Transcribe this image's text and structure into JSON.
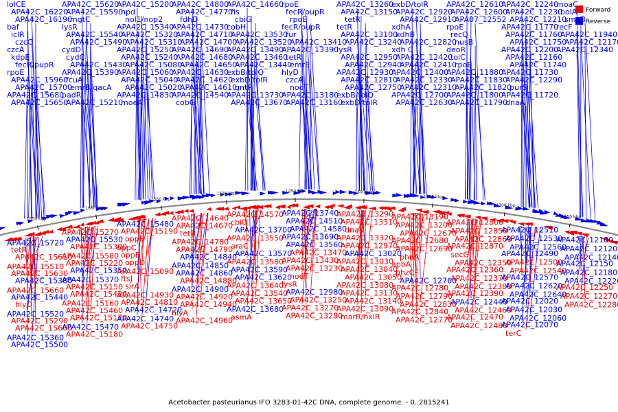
{
  "caption": "Acetobacter pasteurianus IFO 3283-01-42C DNA, complete genome. - 0..2815241",
  "legend": [
    {
      "label": "Forward",
      "color": "#ee0000"
    },
    {
      "label": "Reverse",
      "color": "#0000ee"
    }
  ],
  "colors": {
    "forward": "#ee0000",
    "reverse": "#0000ee",
    "backbone": "#888888"
  },
  "ticks": [
    "1650 kbp",
    "1600 kbp",
    "1550 kbp",
    "1500 kbp",
    "1450 kbp",
    "1400 kbp",
    "1350 kbp",
    "1300 kbp",
    "1250 kbp"
  ],
  "labels_top": [
    [
      "lolCE",
      "r"
    ],
    [
      "APA42C_16220",
      "r"
    ],
    [
      "APA42C_16190",
      "r"
    ],
    [
      "baf",
      "r"
    ],
    [
      "iclR",
      "r"
    ],
    [
      "czcC",
      "r"
    ],
    [
      "czcA",
      "r"
    ],
    [
      "kdpE",
      "r"
    ],
    [
      "fecR/pupR",
      "r"
    ],
    [
      "rpoE",
      "r"
    ],
    [
      "APA42C_15960",
      "r"
    ],
    [
      "APA42C_15700",
      "r"
    ],
    [
      "APA42C_15680",
      "r"
    ],
    [
      "APA42C_15650",
      "r"
    ],
    [
      "APA42C_15620",
      "r"
    ],
    [
      "APA42C_15590",
      "r"
    ],
    [
      "mgtC",
      "r"
    ],
    [
      "lysR",
      "r"
    ],
    [
      "APA42C_15540",
      "r"
    ],
    [
      "APA42C_15490",
      "r"
    ],
    [
      "cydD",
      "r"
    ],
    [
      "cydC",
      "r"
    ],
    [
      "APA42C_15430",
      "r"
    ],
    [
      "APA42C_15390",
      "r"
    ],
    [
      "fcuA",
      "r"
    ],
    [
      "emrB/qacA",
      "r"
    ],
    [
      "padR",
      "r"
    ],
    [
      "APA42C_15210",
      "r"
    ],
    [
      "APA42C_15200",
      "r"
    ],
    [
      "npd",
      "r"
    ],
    [
      "nol1/nop2",
      "r"
    ],
    [
      "APA42C_15340",
      "r"
    ],
    [
      "APA42C_15320",
      "r"
    ],
    [
      "APA42C_15310",
      "r"
    ],
    [
      "APA42C_15250",
      "r"
    ],
    [
      "APA42C_15240",
      "r"
    ],
    [
      "APA42C_15080",
      "r"
    ],
    [
      "APA42C_15060",
      "r"
    ],
    [
      "APA42C_15040",
      "r"
    ],
    [
      "APA42C_15020",
      "r"
    ],
    [
      "APA42C_14830",
      "r"
    ],
    [
      "moeA",
      "r"
    ],
    [
      "APA42C_14800",
      "r"
    ],
    [
      "APA42C_14770",
      "r"
    ],
    [
      "fdhD",
      "r"
    ],
    [
      "APA42C_14730",
      "r"
    ],
    [
      "APA42C_14710",
      "r"
    ],
    [
      "APA42C_14700",
      "r"
    ],
    [
      "APA42C_14690",
      "r"
    ],
    [
      "APA42C_14680",
      "r"
    ],
    [
      "APA42C_14650",
      "r"
    ],
    [
      "APA42C_14630",
      "r"
    ],
    [
      "APA42C_14620",
      "r"
    ],
    [
      "APA42C_14610",
      "r"
    ],
    [
      "APA42C_14540",
      "r"
    ],
    [
      "cobG",
      "r"
    ],
    [
      "APA42C_14660",
      "r"
    ],
    [
      "fis",
      "r"
    ],
    [
      "cbiG",
      "r"
    ],
    [
      "cobH",
      "r"
    ],
    [
      "APA42C_13530",
      "r"
    ],
    [
      "APA42C_13520",
      "r"
    ],
    [
      "APA42C_13490",
      "r"
    ],
    [
      "APA42C_13460",
      "r"
    ],
    [
      "APA42C_13440",
      "r"
    ],
    [
      "exbB/tolQ",
      "r"
    ],
    [
      "exbD/tolR",
      "r"
    ],
    [
      "gntR",
      "r"
    ],
    [
      "APA42C_13730",
      "r"
    ],
    [
      "APA42C_13670",
      "r"
    ],
    [
      "rpoE",
      "r"
    ],
    [
      "fecR/pupR",
      "r"
    ],
    [
      "rpoE",
      "r"
    ],
    [
      "fecR/pupR",
      "r"
    ],
    [
      "fur",
      "r"
    ],
    [
      "APA42C_13410",
      "r"
    ],
    [
      "APA42C_13390",
      "r"
    ],
    [
      "tetR",
      "r"
    ],
    [
      "emrE",
      "r"
    ],
    [
      "hlyD",
      "r"
    ],
    [
      "czcA",
      "r"
    ],
    [
      "nodT",
      "r"
    ],
    [
      "APA42C_13180",
      "r"
    ],
    [
      "APA42C_13160",
      "r"
    ],
    [
      "APA42C_13260",
      "r"
    ],
    [
      "APA42C_13150",
      "r"
    ],
    [
      "tetR",
      "r"
    ],
    [
      "tetR",
      "r"
    ],
    [
      "APA42C_13100",
      "r"
    ],
    [
      "APA42C_13240",
      "r"
    ],
    [
      "lysR",
      "r"
    ],
    [
      "APA42C_12950",
      "r"
    ],
    [
      "APA42C_12940",
      "r"
    ],
    [
      "APA42C_12930",
      "r"
    ],
    [
      "APA42C_12810",
      "r"
    ],
    [
      "APA42C_12750",
      "r"
    ],
    [
      "exbB/tolQ",
      "r"
    ],
    [
      "exbD/tolR",
      "r"
    ],
    [
      "exbD/tolR",
      "r"
    ],
    [
      "APA42C_12920",
      "r"
    ],
    [
      "APA42C_12910",
      "r"
    ],
    [
      "xdhA",
      "r"
    ],
    [
      "xdhB",
      "r"
    ],
    [
      "APA42C_12820",
      "r"
    ],
    [
      "xdh C",
      "r"
    ],
    [
      "APA42C_12420",
      "r"
    ],
    [
      "APA42C_12410",
      "r"
    ],
    [
      "APA42C_12400",
      "r"
    ],
    [
      "APA42C_12330",
      "r"
    ],
    [
      "APA42C_12310",
      "r"
    ],
    [
      "APA42C_12700",
      "r"
    ],
    [
      "APA42C_12630",
      "r"
    ],
    [
      "APA42C_12610",
      "r"
    ],
    [
      "APA42C_12600",
      "r"
    ],
    [
      "APA07_12552",
      "r"
    ],
    [
      "rpoE",
      "r"
    ],
    [
      "recQ",
      "r"
    ],
    [
      "nusB",
      "r"
    ],
    [
      "deoR",
      "r"
    ],
    [
      "tolC",
      "r"
    ],
    [
      "rpoE",
      "r"
    ],
    [
      "APA42C_11880",
      "r"
    ],
    [
      "APA42C_11830",
      "r"
    ],
    [
      "APA42C_11820",
      "r"
    ],
    [
      "APA42C_11800",
      "r"
    ],
    [
      "APA42C_11790",
      "r"
    ],
    [
      "APA42C_12240",
      "r"
    ],
    [
      "APA42C_12230",
      "r"
    ],
    [
      "APA42C_12210",
      "r"
    ],
    [
      "APA42C_11770",
      "r"
    ],
    [
      "APA42C_11760",
      "r"
    ],
    [
      "APA42C_11750",
      "r"
    ],
    [
      "APA42C_12200",
      "r"
    ],
    [
      "APA42C_12160",
      "r"
    ],
    [
      "APA42C_11740",
      "r"
    ],
    [
      "APA42C_11730",
      "r"
    ],
    [
      "APA42C_12290",
      "r"
    ],
    [
      "purS",
      "r"
    ],
    [
      "APA42C_11720",
      "r"
    ],
    [
      "dnaA",
      "r"
    ],
    [
      "moaC",
      "r"
    ],
    [
      "bolA",
      "r"
    ],
    [
      "smpB",
      "r"
    ],
    [
      "recF",
      "r"
    ],
    [
      "APA42C_11940",
      "r"
    ],
    [
      "APA42C_12170",
      "r"
    ],
    [
      "APA42C_12340",
      "r"
    ]
  ],
  "labels_bottom": [
    [
      "APA42C_15720",
      "r"
    ],
    [
      "tetR",
      "f"
    ],
    [
      "APA42C_15610",
      "f"
    ],
    [
      "APA42C_15510",
      "f"
    ],
    [
      "APA42C_15630",
      "f"
    ],
    [
      "APA42C_15380",
      "r"
    ],
    [
      "APA42C_15660",
      "f"
    ],
    [
      "APA42C_15440",
      "r"
    ],
    [
      "hlyD",
      "f"
    ],
    [
      "APA42C_15520",
      "r"
    ],
    [
      "APA42C_15290",
      "f"
    ],
    [
      "APA42C_15600",
      "f"
    ],
    [
      "APA42C_15360",
      "r"
    ],
    [
      "APA42C_15500",
      "r"
    ],
    [
      "APA42C_15270",
      "f"
    ],
    [
      "APA42C_15530",
      "r"
    ],
    [
      "APA42C_15300",
      "f"
    ],
    [
      "APA42C_15580",
      "f"
    ],
    [
      "APA42C_15220",
      "f"
    ],
    [
      "APA42C_15350",
      "r"
    ],
    [
      "APA42C_15370",
      "r"
    ],
    [
      "APA42C_15150",
      "f"
    ],
    [
      "APA42C_15420",
      "f"
    ],
    [
      "APA42C_15160",
      "f"
    ],
    [
      "APA42C_15460",
      "f"
    ],
    [
      "APA42C_15170",
      "f"
    ],
    [
      "APA42C_15470",
      "r"
    ],
    [
      "APA42C_15180",
      "f"
    ],
    [
      "APA42C_15480",
      "r"
    ],
    [
      "APA42C_15190",
      "f"
    ],
    [
      "oppF",
      "f"
    ],
    [
      "oppC",
      "f"
    ],
    [
      "oppB",
      "f"
    ],
    [
      "oppD",
      "f"
    ],
    [
      "APA42C_15090",
      "f"
    ],
    [
      "ftsJ",
      "f"
    ],
    [
      "sirA",
      "f"
    ],
    [
      "APA42C_14930",
      "f"
    ],
    [
      "APA42C_14810",
      "f"
    ],
    [
      "APA42C_14720",
      "r"
    ],
    [
      "APA42C_14740",
      "r"
    ],
    [
      "APA42C_14750",
      "f"
    ],
    [
      "APA42C_14640",
      "f"
    ],
    [
      "APA42C_14670",
      "f"
    ],
    [
      "tetR",
      "f"
    ],
    [
      "APA42C_14780",
      "f"
    ],
    [
      "APA42C_14790",
      "f"
    ],
    [
      "APA42C_14840",
      "r"
    ],
    [
      "APA42C_14850",
      "r"
    ],
    [
      "APA42C_14860",
      "r"
    ],
    [
      "APA42C_14880",
      "f"
    ],
    [
      "APA42C_14900",
      "r"
    ],
    [
      "APA42C_14920",
      "f"
    ],
    [
      "APA42C_14940",
      "f"
    ],
    [
      "hlyA",
      "f"
    ],
    [
      "APA42C_14960",
      "f"
    ],
    [
      "APA42C_14570",
      "f"
    ],
    [
      "cbiD",
      "f"
    ],
    [
      "APA42C_13700",
      "r"
    ],
    [
      "APA42C_13550",
      "f"
    ],
    [
      "araC",
      "f"
    ],
    [
      "APA42C_13570",
      "r"
    ],
    [
      "APA42C_13580",
      "f"
    ],
    [
      "APA42C_13590",
      "r"
    ],
    [
      "APA42C_13620",
      "r"
    ],
    [
      "APA42C_13640",
      "f"
    ],
    [
      "APA42C_13540",
      "f"
    ],
    [
      "APA42C_13650",
      "f"
    ],
    [
      "APA42C_13680",
      "r"
    ],
    [
      "asmA",
      "f"
    ],
    [
      "APA42C_13740",
      "r"
    ],
    [
      "APA42C_14510",
      "r"
    ],
    [
      "APA42C_14580",
      "r"
    ],
    [
      "APA42C_13690",
      "r"
    ],
    [
      "APA42C_13560",
      "r"
    ],
    [
      "APA42C_13470",
      "f"
    ],
    [
      "APA42C_13430",
      "f"
    ],
    [
      "APA42C_13230",
      "f"
    ],
    [
      "nodT",
      "f"
    ],
    [
      "lysR",
      "f"
    ],
    [
      "APA42C_12980",
      "r"
    ],
    [
      "APA42C_13250",
      "f"
    ],
    [
      "APA42C_13270",
      "f"
    ],
    [
      "APA42C_13280",
      "f"
    ],
    [
      "APA42C_13290",
      "f"
    ],
    [
      "APA42C_13310",
      "f"
    ],
    [
      "dnaK",
      "f"
    ],
    [
      "APA42C_13320",
      "f"
    ],
    [
      "APA42C_12970",
      "f"
    ],
    [
      "APA42C_13020",
      "r"
    ],
    [
      "APA42C_13030",
      "f"
    ],
    [
      "APA42C_13040",
      "f"
    ],
    [
      "APA42C_13050",
      "f"
    ],
    [
      "APA42C_13080",
      "f"
    ],
    [
      "APA42C_13130",
      "f"
    ],
    [
      "APA42C_13140",
      "f"
    ],
    [
      "APA42C_13090",
      "f"
    ],
    [
      "marR/hxlR",
      "f"
    ],
    [
      "APA42C_13190",
      "f"
    ],
    [
      "APA42C_13200",
      "f"
    ],
    [
      "APA42C_12670",
      "f"
    ],
    [
      "APA42C_12680",
      "f"
    ],
    [
      "APA42C_12690",
      "f"
    ],
    [
      "phnA",
      "f"
    ],
    [
      "apbA",
      "f"
    ],
    [
      "phzCF",
      "f"
    ],
    [
      "APA42C_12760",
      "r"
    ],
    [
      "APA42C_12780",
      "f"
    ],
    [
      "APA42C_12790",
      "f"
    ],
    [
      "APA42C_12830",
      "f"
    ],
    [
      "APA42C_12840",
      "f"
    ],
    [
      "APA42C_12770",
      "f"
    ],
    [
      "APA42C_12800",
      "f"
    ],
    [
      "APA42C_12850",
      "f"
    ],
    [
      "APA42C_12860",
      "f"
    ],
    [
      "APA42C_12870",
      "f"
    ],
    [
      "secG",
      "f"
    ],
    [
      "APA42C_12350",
      "f"
    ],
    [
      "APA42C_12360",
      "f"
    ],
    [
      "APA42C_12370",
      "f"
    ],
    [
      "APA42C_12380",
      "f"
    ],
    [
      "APA42C_12390",
      "f"
    ],
    [
      "APA42C_12440",
      "r"
    ],
    [
      "APA42C_12460",
      "f"
    ],
    [
      "APA42C_12470",
      "f"
    ],
    [
      "APA42C_12480",
      "f"
    ],
    [
      "APA42C_12510",
      "r"
    ],
    [
      "APA42C_12530",
      "r"
    ],
    [
      "APA42C_12560",
      "r"
    ],
    [
      "APA42C_12490",
      "r"
    ],
    [
      "APA42C_12500",
      "f"
    ],
    [
      "APA42C_12540",
      "f"
    ],
    [
      "APA42C_12570",
      "r"
    ],
    [
      "APA42C_12620",
      "r"
    ],
    [
      "APA42C_12640",
      "r"
    ],
    [
      "APA42C_12020",
      "r"
    ],
    [
      "APA42C_12030",
      "r"
    ],
    [
      "APA42C_12060",
      "r"
    ],
    [
      "APA42C_12070",
      "r"
    ],
    [
      "terC",
      "f"
    ],
    [
      "APA42C_12100",
      "r"
    ],
    [
      "APA42C_12120",
      "r"
    ],
    [
      "APA42C_12140",
      "r"
    ],
    [
      "APA42C_12150",
      "r"
    ],
    [
      "APA42C_12180",
      "r"
    ],
    [
      "APA42C_12220",
      "r"
    ],
    [
      "APA42C_12250",
      "f"
    ],
    [
      "APA42C_12270",
      "f"
    ],
    [
      "APA42C_12280",
      "f"
    ]
  ]
}
